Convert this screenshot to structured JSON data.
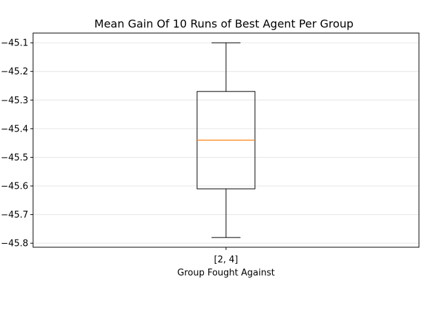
{
  "chart_data": {
    "type": "box",
    "title": "Mean Gain Of 10 Runs of Best Agent Per Group",
    "xlabel": "Group Fought Against",
    "ylabel": "",
    "categories": [
      "[2, 4]"
    ],
    "boxes": [
      {
        "category": "[2, 4]",
        "whisker_low": -45.78,
        "q1": -45.61,
        "median": -45.44,
        "q3": -45.27,
        "whisker_high": -45.1
      }
    ],
    "ylim": [
      -45.814,
      -45.066
    ],
    "yticks": [
      -45.1,
      -45.2,
      -45.3,
      -45.4,
      -45.5,
      -45.6,
      -45.7,
      -45.8
    ],
    "ytick_labels": [
      "−45.1",
      "−45.2",
      "−45.3",
      "−45.4",
      "−45.5",
      "−45.6",
      "−45.7",
      "−45.8"
    ],
    "grid": "horizontal",
    "colors": {
      "box": "#000000",
      "median": "#ff7f0e",
      "grid": "#e6e6e6"
    }
  }
}
